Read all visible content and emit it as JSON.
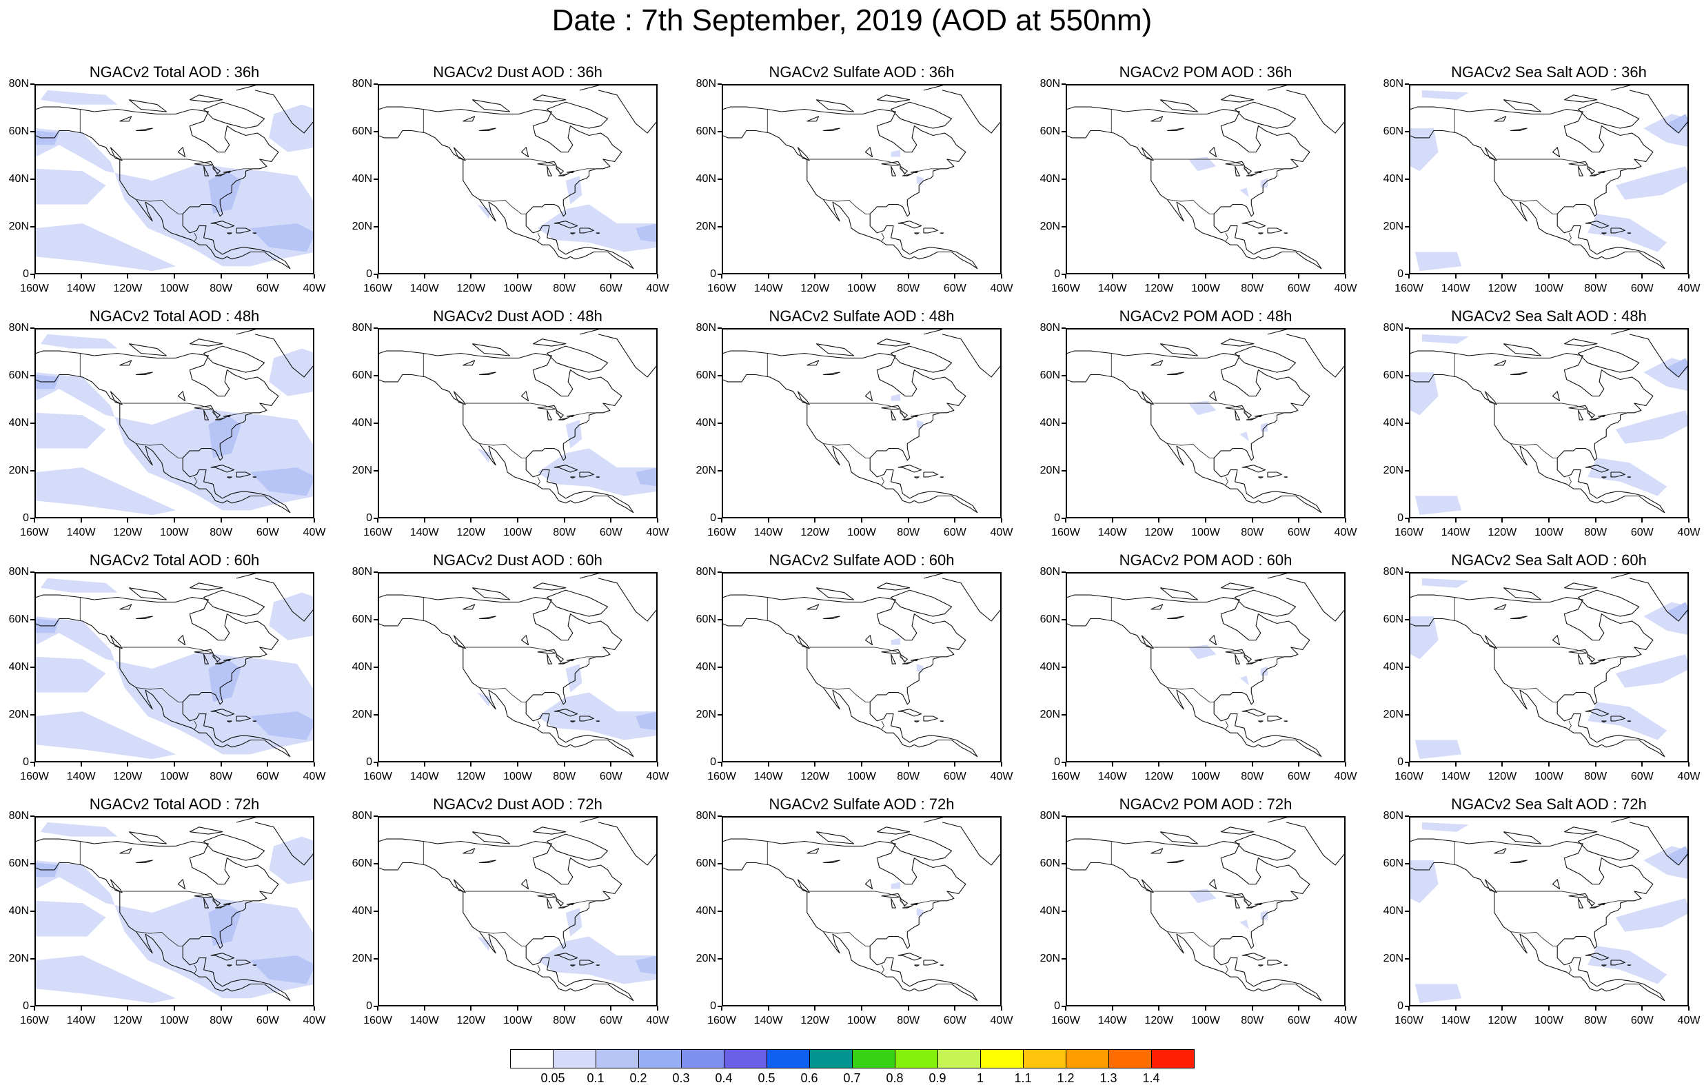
{
  "figure_title": "Date : 7th September, 2019 (AOD at 550nm)",
  "lat_ticks": [
    "80N",
    "60N",
    "40N",
    "20N",
    "0"
  ],
  "lon_ticks": [
    "160W",
    "140W",
    "120W",
    "100W",
    "80W",
    "60W",
    "40W"
  ],
  "extent": {
    "lon_min": -160,
    "lon_max": -40,
    "lat_min": 0,
    "lat_max": 80
  },
  "column_fields": [
    "Total AOD",
    "Dust AOD",
    "Sulfate AOD",
    "POM AOD",
    "Sea Salt AOD"
  ],
  "row_lead_hours": [
    "36h",
    "48h",
    "60h",
    "72h"
  ],
  "panel_titles": [
    [
      "NGACv2 Total AOD : 36h",
      "NGACv2 Dust AOD : 36h",
      "NGACv2 Sulfate AOD : 36h",
      "NGACv2 POM AOD : 36h",
      "NGACv2 Sea Salt AOD : 36h"
    ],
    [
      "NGACv2 Total AOD : 48h",
      "NGACv2 Dust AOD : 48h",
      "NGACv2 Sulfate AOD : 48h",
      "NGACv2 POM AOD : 48h",
      "NGACv2 Sea Salt AOD : 48h"
    ],
    [
      "NGACv2 Total AOD : 60h",
      "NGACv2 Dust AOD : 60h",
      "NGACv2 Sulfate AOD : 60h",
      "NGACv2 POM AOD : 60h",
      "NGACv2 Sea Salt AOD : 60h"
    ],
    [
      "NGACv2 Total AOD : 72h",
      "NGACv2 Dust AOD : 72h",
      "NGACv2 Sulfate AOD : 72h",
      "NGACv2 POM AOD : 72h",
      "NGACv2 Sea Salt  AOD : 72h"
    ]
  ],
  "legend": {
    "labels": [
      "0.05",
      "0.1",
      "0.2",
      "0.3",
      "0.4",
      "0.5",
      "0.6",
      "0.7",
      "0.8",
      "0.9",
      "1",
      "1.1",
      "1.2",
      "1.3",
      "1.4"
    ],
    "colors": [
      "#ffffff",
      "#d4dcfa",
      "#b6c4f6",
      "#97aef4",
      "#7f8ff0",
      "#6a60e6",
      "#0f5ff2",
      "#00948f",
      "#37d214",
      "#86f00d",
      "#c6f553",
      "#ffff00",
      "#ffc40b",
      "#ff9d00",
      "#ff6c00",
      "#ff1e00"
    ]
  },
  "aod_colors": {
    "light": "#d4dcfa",
    "medium": "#b6c4f6",
    "strong": "#97aef4"
  }
}
